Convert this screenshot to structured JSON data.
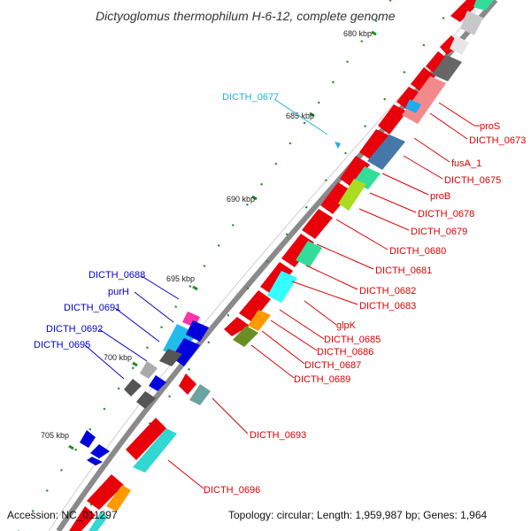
{
  "title": "Dictyoglomus thermophilum H-6-12, complete genome",
  "footer": {
    "accession": "Accession: NC_011297",
    "summary": "Topology: circular; Length: 1,959,987 bp; Genes: 1,964"
  },
  "ticks": [
    "680 kbp",
    "685 kbp",
    "690 kbp",
    "695 kbp",
    "700 kbp",
    "705 kbp"
  ],
  "labels": {
    "red": [
      "proS",
      "DICTH_0673",
      "fusA_1",
      "DICTH_0675",
      "proB",
      "DICTH_0678",
      "DICTH_0679",
      "DICTH_0680",
      "DICTH_0681",
      "DICTH_0682",
      "DICTH_0683",
      "glpK",
      "DICTH_0685",
      "DICTH_0686",
      "DICTH_0687",
      "DICTH_0689",
      "DICTH_0693",
      "DICTH_0696"
    ],
    "blue": [
      "DICTH_0688",
      "purH",
      "DICTH_0691",
      "DICTH_0692",
      "DICTH_0695"
    ],
    "cyan": [
      "DICTH_0677"
    ]
  },
  "colors": {
    "backbone": "#7a7a7a",
    "cds_forward": "#e8000b",
    "cds_reverse": "#0000dd",
    "rna": "#31d7d0",
    "label_red": "#dd0000",
    "label_blue": "#0000cc",
    "label_cyan": "#22b5d8",
    "tick": "#1f8a1f"
  }
}
